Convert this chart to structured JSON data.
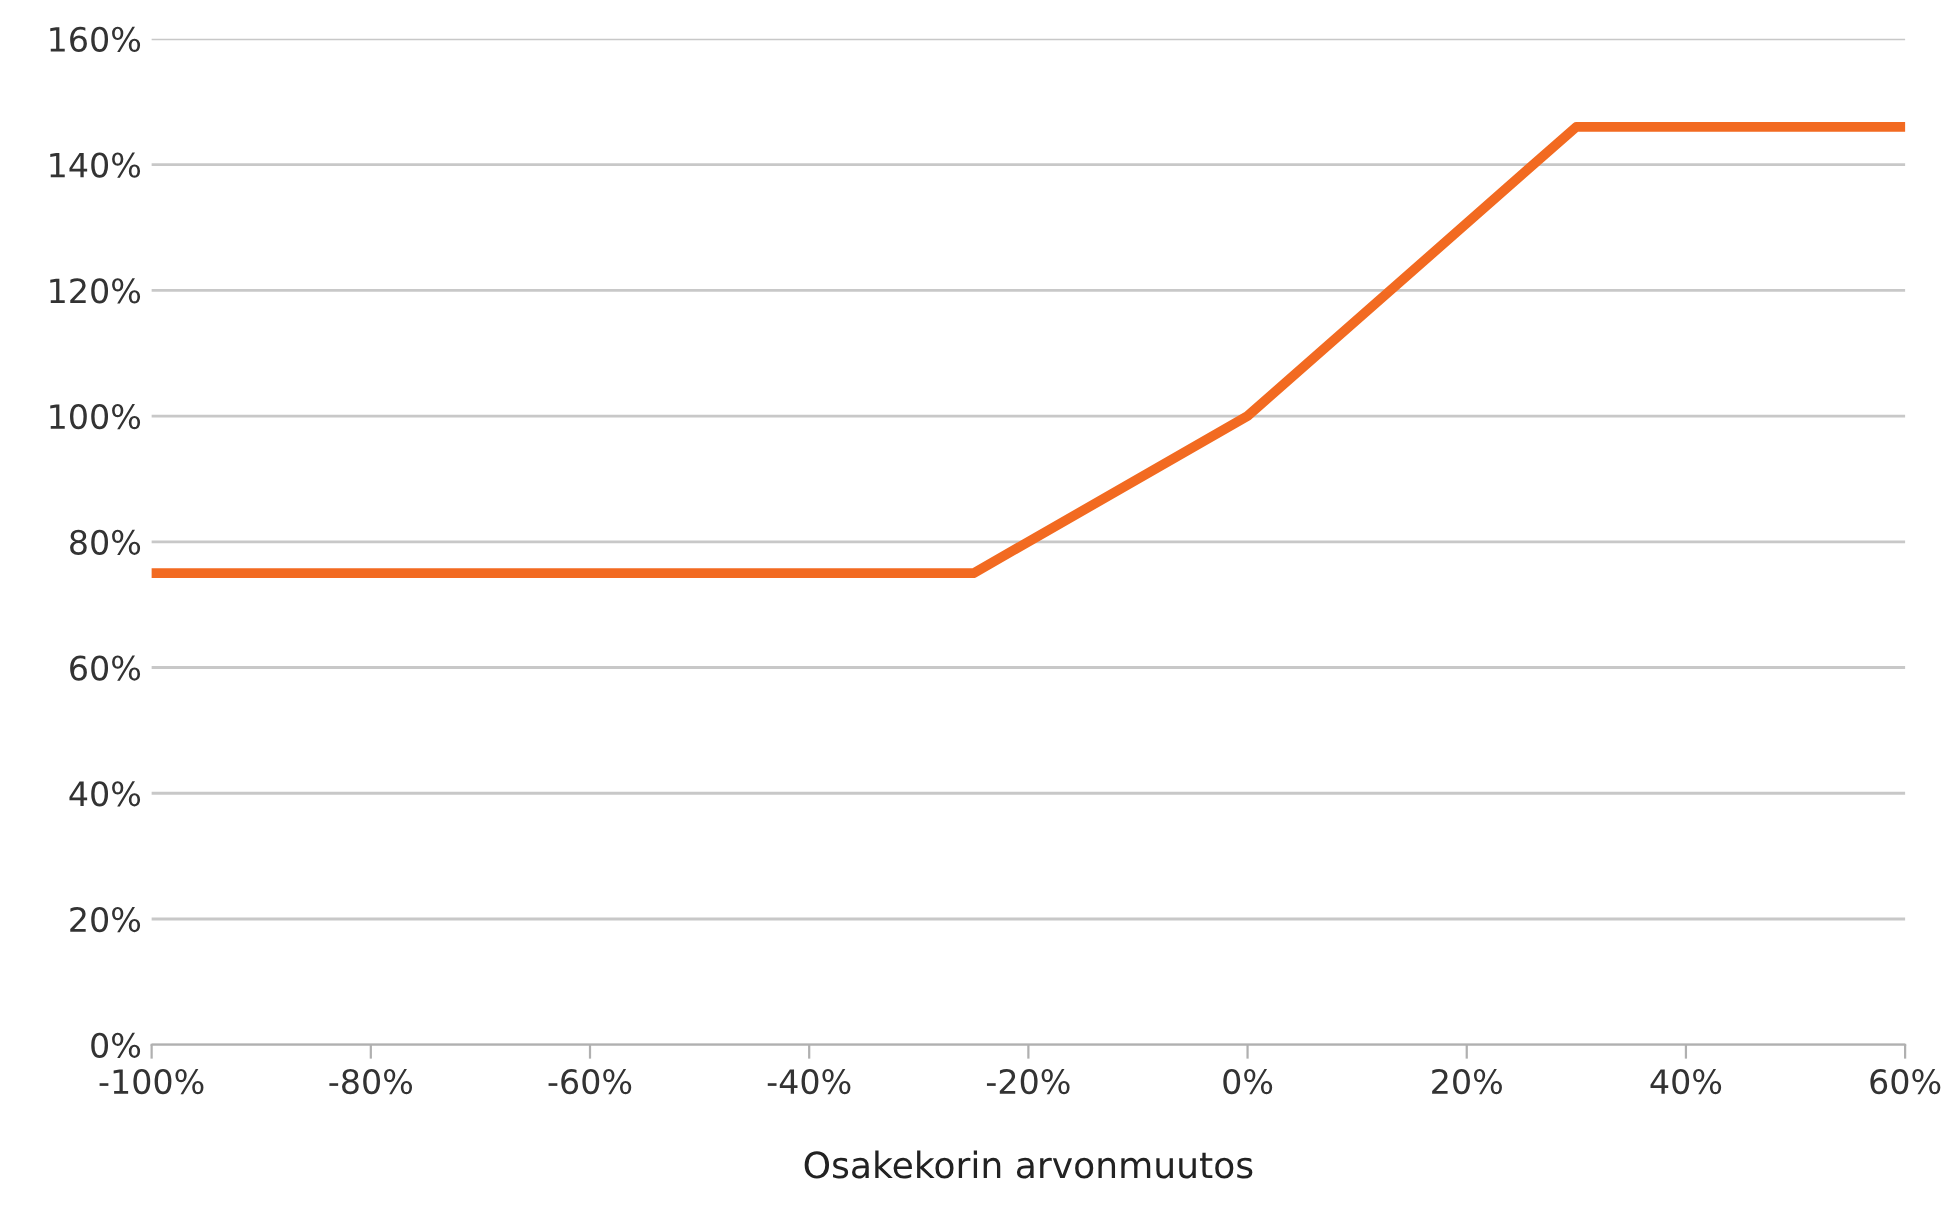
{
  "chart_data": {
    "type": "line",
    "xlabel": "Osakekorin arvonmuutos",
    "x": [
      -100,
      -25,
      0,
      30,
      60
    ],
    "series": [
      {
        "color": "#f26a21",
        "values": [
          75,
          75,
          100,
          146,
          146
        ]
      }
    ],
    "xlim": [
      -100,
      60
    ],
    "xticks": [
      {
        "value": -100,
        "label": "-100%"
      },
      {
        "value": -80,
        "label": "-80%"
      },
      {
        "value": -60,
        "label": "-60%"
      },
      {
        "value": -40,
        "label": "-40%"
      },
      {
        "value": -20,
        "label": "-20%"
      },
      {
        "value": 0,
        "label": "0%"
      },
      {
        "value": 20,
        "label": "20%"
      },
      {
        "value": 40,
        "label": "40%"
      },
      {
        "value": 60,
        "label": "60%"
      }
    ],
    "ylim": [
      0,
      160
    ],
    "yticks": [
      {
        "value": 0,
        "label": "0%"
      },
      {
        "value": 20,
        "label": "20%"
      },
      {
        "value": 40,
        "label": "40%"
      },
      {
        "value": 60,
        "label": "60%"
      },
      {
        "value": 80,
        "label": "80%"
      },
      {
        "value": 100,
        "label": "100%"
      },
      {
        "value": 120,
        "label": "120%"
      },
      {
        "value": 140,
        "label": "140%"
      },
      {
        "value": 160,
        "label": "160%"
      }
    ],
    "grid": "y",
    "marker": "none",
    "line_style": "solid",
    "legend": false
  }
}
